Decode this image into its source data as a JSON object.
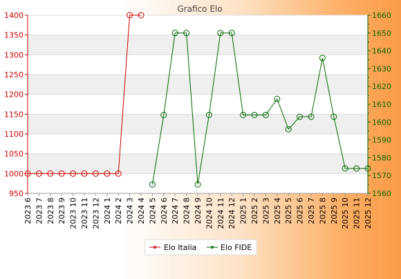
{
  "chart_data": {
    "type": "line",
    "title": "Grafico Elo",
    "categories": [
      "2023 6",
      "2023 7",
      "2023 8",
      "2023 9",
      "2023 10",
      "2023 11",
      "2023 12",
      "2024 1",
      "2024 2",
      "2024 3",
      "2024 4",
      "2024 5",
      "2024 6",
      "2024 7",
      "2024 8",
      "2024 9",
      "2024 10",
      "2024 11",
      "2024 12",
      "2025 1",
      "2025 2",
      "2025 3",
      "2025 4",
      "2025 5",
      "2025 6",
      "2025 7",
      "2025 8",
      "2025 9",
      "2025 10",
      "2025 11",
      "2025 12"
    ],
    "y_left": {
      "ylim": [
        950,
        1400
      ],
      "ticks": [
        950,
        1000,
        1050,
        1100,
        1150,
        1200,
        1250,
        1300,
        1350,
        1400
      ],
      "color": "#cc0000"
    },
    "y_right": {
      "ylim": [
        1560,
        1660
      ],
      "ticks": [
        1560,
        1570,
        1580,
        1590,
        1600,
        1610,
        1620,
        1630,
        1640,
        1650,
        1660
      ],
      "color": "#006600"
    },
    "series": [
      {
        "name": "Elo Italia",
        "axis": "left",
        "color": "#cc0000",
        "values": [
          1000,
          1000,
          1000,
          1000,
          1000,
          1000,
          1000,
          1000,
          1000,
          1400,
          1400,
          null,
          null,
          null,
          null,
          null,
          null,
          null,
          null,
          null,
          null,
          null,
          null,
          null,
          null,
          null,
          null,
          null,
          null,
          null,
          null
        ]
      },
      {
        "name": "Elo FIDE",
        "axis": "right",
        "color": "#006600",
        "values": [
          null,
          null,
          null,
          null,
          null,
          null,
          null,
          null,
          null,
          null,
          null,
          1565,
          1604,
          1650,
          1650,
          1565,
          1604,
          1650,
          1650,
          1604,
          1604,
          1604,
          1613,
          1596,
          1603,
          1603,
          1636,
          1603,
          1574,
          1574,
          1574
        ]
      }
    ],
    "grid": true,
    "legend_position": "bottom-center"
  }
}
